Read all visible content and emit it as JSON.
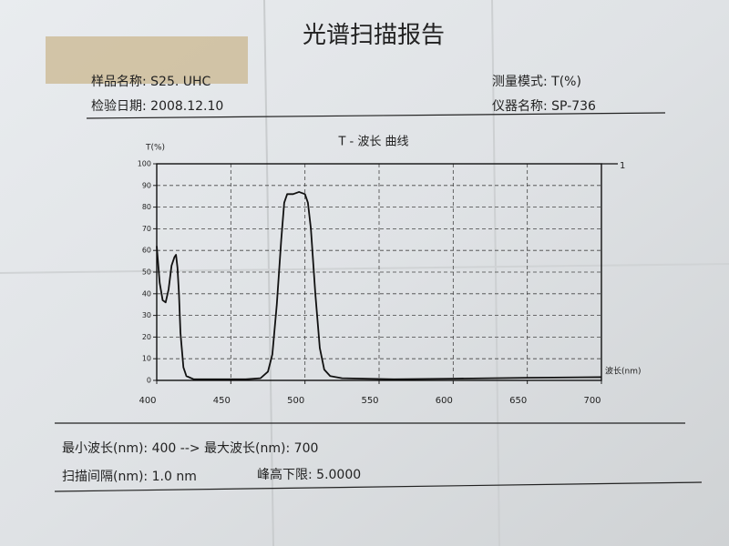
{
  "header": {
    "title": "光谱扫描报告",
    "sample_name": "样品名称: S25. UHC",
    "measure_mode": "测量模式: T(%)",
    "test_date": "检验日期: 2008.12.10",
    "instrument": "仪器名称: SP-736"
  },
  "footer": {
    "range": "最小波长(nm): 400 --> 最大波长(nm): 700",
    "interval": "扫描间隔(nm): 1.0 nm",
    "threshold": "峰高下限: 5.0000"
  },
  "chart_data": {
    "type": "line",
    "title": "T - 波长 曲线",
    "x_label": "波长(nm)",
    "y_label": "T(%)",
    "x": [
      400,
      402,
      404,
      406,
      408,
      410,
      412,
      413,
      414,
      415,
      416,
      418,
      420,
      425,
      440,
      460,
      470,
      475,
      478,
      481,
      484,
      486,
      488,
      492,
      496,
      500,
      502,
      504,
      507,
      510,
      513,
      517,
      525,
      560,
      600,
      650,
      700
    ],
    "series": [
      {
        "name": "1",
        "color": "#111111",
        "values": [
          62,
          45,
          37,
          36,
          42,
          53,
          57,
          58,
          52,
          40,
          22,
          6,
          2,
          0.5,
          0.5,
          0.5,
          1,
          4,
          12,
          35,
          65,
          82,
          86,
          86,
          87,
          86,
          82,
          70,
          40,
          15,
          5,
          2,
          1,
          0.5,
          0.8,
          1.2,
          1.5
        ]
      }
    ],
    "xlim": [
      400,
      700
    ],
    "xticks": [
      400,
      450,
      500,
      550,
      600,
      650,
      700
    ],
    "ylim": [
      0,
      100
    ],
    "yticks": [
      0,
      10,
      20,
      30,
      40,
      50,
      60,
      70,
      80,
      90,
      100
    ],
    "grid": true
  }
}
